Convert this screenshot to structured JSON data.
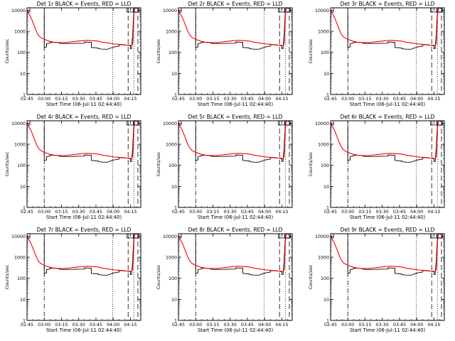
{
  "figure": {
    "background": "#ffffff",
    "events_color": "#000000",
    "lld_color": "#ff0000"
  },
  "chart_data": [
    {
      "type": "line",
      "title": "Det 1r BLACK = Events, RED = LLD",
      "xlabel": "Start Time (06-Jul-11 02:44:40)",
      "ylabel": "Counts/sec"
    },
    {
      "type": "line",
      "title": "Det 2r BLACK = Events, RED = LLD",
      "xlabel": "Start Time (06-Jul-11 02:44:40)",
      "ylabel": "Counts/sec"
    },
    {
      "type": "line",
      "title": "Det 3r BLACK = Events, RED = LLD",
      "xlabel": "Start Time (06-Jul-11 02:44:40)",
      "ylabel": "Counts/sec"
    },
    {
      "type": "line",
      "title": "Det 4r BLACK = Events, RED = LLD",
      "xlabel": "Start Time (06-Jul-11 02:44:40)",
      "ylabel": "Counts/sec"
    },
    {
      "type": "line",
      "title": "Det 5r BLACK = Events, RED = LLD",
      "xlabel": "Start Time (06-Jul-11 02:44:40)",
      "ylabel": "Counts/sec"
    },
    {
      "type": "line",
      "title": "Det 6r BLACK = Events, RED = LLD",
      "xlabel": "Start Time (06-Jul-11 02:44:40)",
      "ylabel": "Counts/sec"
    },
    {
      "type": "line",
      "title": "Det 7r BLACK = Events, RED = LLD",
      "xlabel": "Start Time (06-Jul-11 02:44:40)",
      "ylabel": "Counts/sec"
    },
    {
      "type": "line",
      "title": "Det 8r BLACK = Events, RED = LLD",
      "xlabel": "Start Time (06-Jul-11 02:44:40)",
      "ylabel": "Counts/sec"
    },
    {
      "type": "line",
      "title": "Det 9r BLACK = Events, RED = LLD",
      "xlabel": "Start Time (06-Jul-11 02:44:40)",
      "ylabel": "Counts/sec"
    }
  ],
  "shared_axes": {
    "x_tick_labels": [
      "02:45",
      "03:00",
      "03:15",
      "03:30",
      "03:45",
      "04:00",
      "04:15"
    ],
    "x_tick_minutes": [
      0,
      15,
      30,
      45,
      60,
      75,
      90
    ],
    "xlim_minutes": [
      0,
      99
    ],
    "y_scale": "log",
    "y_tick_labels": [
      "1",
      "10",
      "100",
      "1000",
      "10000"
    ],
    "y_tick_values": [
      1,
      10,
      100,
      1000,
      10000
    ],
    "ylim": [
      1,
      13000
    ],
    "lld_series": {
      "name": "LLD",
      "x": [
        0,
        1,
        2,
        3,
        4,
        5,
        6,
        7,
        8,
        9,
        10,
        11,
        12,
        13,
        14,
        16,
        18,
        20,
        24,
        28,
        32,
        36,
        40,
        44,
        48,
        52,
        56,
        60,
        62,
        64,
        66,
        68,
        70,
        72,
        74,
        76,
        78,
        80,
        82,
        84,
        86,
        88,
        90,
        91,
        92,
        92.5,
        93,
        93.5,
        94
      ],
      "y": [
        10500,
        8000,
        6300,
        5000,
        3800,
        2800,
        2000,
        1450,
        1050,
        800,
        650,
        560,
        500,
        470,
        440,
        400,
        360,
        330,
        300,
        290,
        290,
        300,
        320,
        340,
        360,
        370,
        360,
        350,
        340,
        320,
        300,
        290,
        280,
        270,
        260,
        250,
        245,
        240,
        235,
        230,
        225,
        215,
        205,
        210,
        260,
        1000,
        5000,
        10000,
        12500
      ]
    },
    "events_series": {
      "name": "Events",
      "x": [
        15,
        15,
        16,
        17,
        17,
        18,
        19,
        20,
        20,
        23,
        26,
        28,
        28,
        30,
        34,
        40,
        44,
        48,
        50,
        50,
        53,
        56,
        56,
        60,
        62,
        62,
        64,
        66,
        68,
        70,
        72,
        74,
        76,
        78,
        80,
        80,
        82,
        84,
        86,
        88,
        90,
        90,
        91,
        92,
        92.5,
        93,
        93.5,
        94
      ],
      "y": [
        8000,
        170,
        175,
        180,
        260,
        265,
        270,
        275,
        300,
        300,
        295,
        290,
        270,
        265,
        262,
        265,
        270,
        272,
        275,
        310,
        305,
        300,
        170,
        165,
        160,
        150,
        145,
        142,
        140,
        140,
        155,
        168,
        180,
        190,
        195,
        230,
        228,
        225,
        222,
        220,
        218,
        150,
        150,
        700,
        3000,
        8000,
        11000,
        12500
      ]
    },
    "reference_lines_minutes": [
      {
        "x": 15,
        "style": "dash-dot"
      },
      {
        "x": 74.5,
        "style": "dotted"
      },
      {
        "x": 88,
        "style": "long-dash"
      },
      {
        "x": 93,
        "style": "dotted"
      },
      {
        "x": 96.5,
        "style": "long-dash"
      }
    ],
    "boxes_minutes": [
      {
        "x0": 0,
        "x1": 2.5,
        "ymin": 8200,
        "ymax": 13000
      },
      {
        "x0": 87,
        "x1": 92.5,
        "ymin": 8200,
        "ymax": 13000
      },
      {
        "x0": 92.5,
        "x1": 97.5,
        "ymin": 8200,
        "ymax": 13000
      }
    ]
  }
}
